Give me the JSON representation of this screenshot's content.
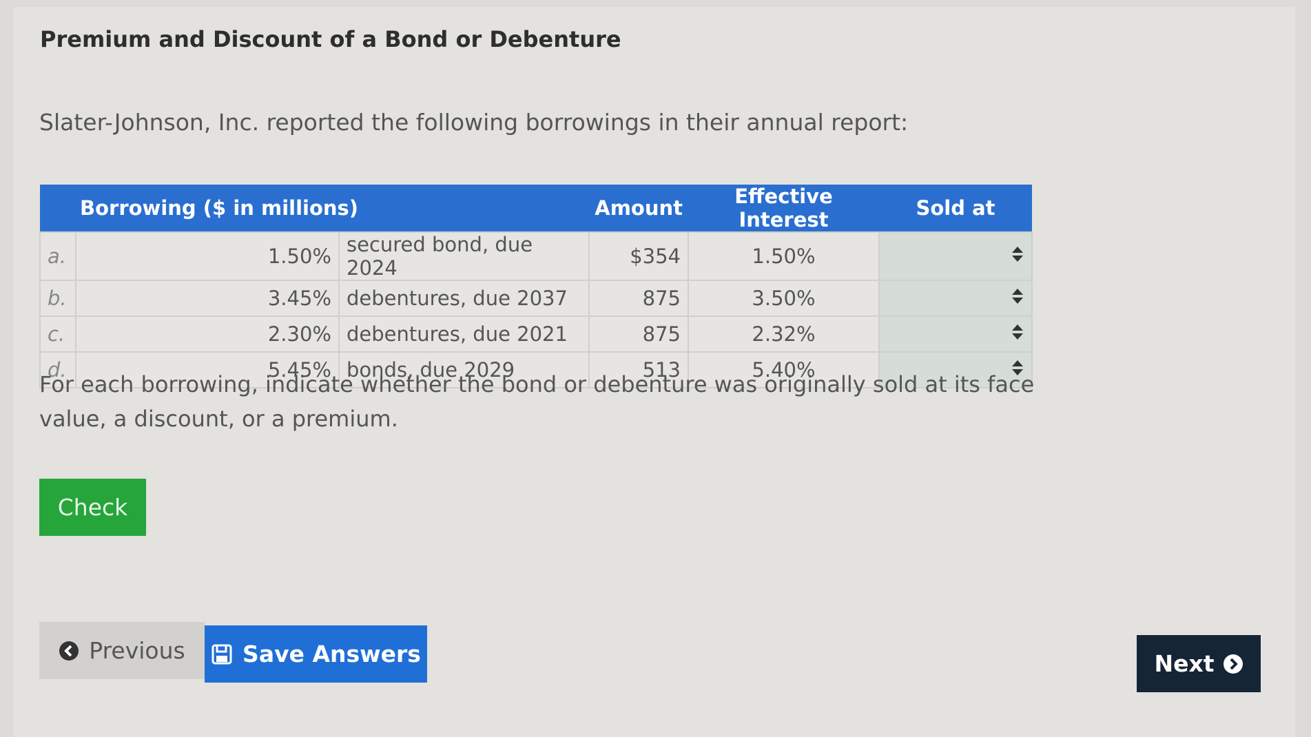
{
  "header": {
    "title": "Premium and Discount of a Bond or Debenture"
  },
  "intro": "Slater-Johnson, Inc. reported the following borrowings in their annual report:",
  "table": {
    "headers": [
      "Borrowing ($ in millions)",
      "Amount",
      "Effective Interest",
      "Sold at"
    ],
    "rows": [
      [
        "a.",
        "1.50%",
        "secured bond, due 2024",
        "$354",
        "1.50%"
      ],
      [
        "b.",
        "3.45%",
        "debentures, due 2037",
        "875",
        "3.50%"
      ],
      [
        "c.",
        "2.30%",
        "debentures, due 2021",
        "875",
        "2.32%"
      ],
      [
        "d.",
        "5.45%",
        "bonds, due 2029",
        "513",
        "5.40%"
      ]
    ]
  },
  "instructions": "For each borrowing, indicate whether the bond or debenture was originally sold at its face value, a discount, or a premium.",
  "buttons": {
    "check": "Check",
    "previous": "Previous",
    "save": "Save Answers",
    "next": "Next"
  }
}
